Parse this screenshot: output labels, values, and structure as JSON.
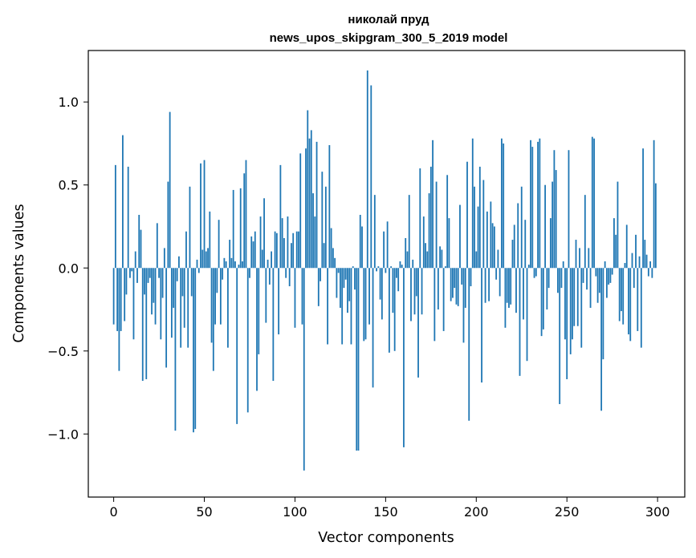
{
  "chart_data": {
    "type": "bar",
    "title_line1": "николай пруд",
    "title_line2": "news_upos_skipgram_300_5_2019 model",
    "xlabel": "Vector components",
    "ylabel": "Components values",
    "xlim": [
      -14,
      315
    ],
    "ylim": [
      -1.38,
      1.31
    ],
    "xticks": [
      {
        "value": 0,
        "label": "0"
      },
      {
        "value": 50,
        "label": "50"
      },
      {
        "value": 100,
        "label": "100"
      },
      {
        "value": 150,
        "label": "150"
      },
      {
        "value": 200,
        "label": "200"
      },
      {
        "value": 250,
        "label": "250"
      },
      {
        "value": 300,
        "label": "300"
      }
    ],
    "yticks": [
      {
        "value": -1.0,
        "label": "−1.0"
      },
      {
        "value": -0.5,
        "label": "−0.5"
      },
      {
        "value": 0.0,
        "label": "0.0"
      },
      {
        "value": 0.5,
        "label": "0.5"
      },
      {
        "value": 1.0,
        "label": "1.0"
      }
    ],
    "bar_color": "#1f77b4",
    "values": [
      -0.34,
      0.62,
      -0.38,
      -0.62,
      -0.38,
      0.8,
      -0.32,
      -0.16,
      0.61,
      -0.06,
      -0.02,
      -0.43,
      0.1,
      -0.09,
      0.32,
      0.23,
      -0.68,
      -0.16,
      -0.67,
      -0.09,
      -0.06,
      -0.28,
      -0.21,
      -0.34,
      0.27,
      -0.06,
      -0.43,
      -0.18,
      0.12,
      -0.6,
      0.52,
      0.94,
      -0.42,
      -0.24,
      -0.98,
      -0.08,
      0.07,
      -0.48,
      -0.17,
      -0.36,
      0.22,
      -0.48,
      0.49,
      -0.17,
      -0.99,
      -0.97,
      0.05,
      -0.03,
      0.63,
      0.11,
      0.65,
      0.1,
      0.12,
      0.34,
      -0.45,
      -0.62,
      -0.34,
      -0.15,
      0.29,
      -0.34,
      -0.07,
      0.06,
      0.04,
      -0.48,
      0.17,
      0.06,
      0.47,
      0.04,
      -0.94,
      0.02,
      0.48,
      0.04,
      0.57,
      0.65,
      -0.87,
      -0.06,
      0.19,
      0.16,
      0.22,
      -0.74,
      -0.52,
      0.31,
      0.11,
      0.42,
      -0.33,
      0.05,
      -0.1,
      0.1,
      -0.68,
      0.22,
      0.21,
      -0.4,
      0.62,
      0.3,
      0.18,
      -0.06,
      0.31,
      -0.11,
      0.15,
      0.21,
      -0.36,
      0.22,
      0.22,
      0.69,
      -0.34,
      -1.22,
      0.72,
      0.95,
      0.78,
      0.83,
      0.45,
      0.31,
      0.76,
      -0.23,
      -0.08,
      0.58,
      0.15,
      0.49,
      -0.46,
      0.74,
      0.24,
      0.12,
      0.06,
      -0.18,
      -0.03,
      -0.24,
      -0.46,
      -0.12,
      -0.07,
      -0.27,
      -0.2,
      -0.46,
      0.01,
      -0.13,
      -1.1,
      -1.1,
      0.32,
      0.25,
      -0.44,
      -0.43,
      1.19,
      -0.34,
      1.1,
      -0.72,
      0.44,
      -0.02,
      0.01,
      -0.19,
      -0.31,
      0.22,
      -0.03,
      0.28,
      -0.51,
      0.01,
      -0.27,
      -0.5,
      -0.06,
      -0.14,
      0.04,
      0.02,
      -1.08,
      0.18,
      0.1,
      0.44,
      -0.32,
      0.05,
      -0.28,
      -0.17,
      -0.66,
      0.6,
      -0.28,
      0.31,
      0.15,
      0.1,
      0.45,
      0.61,
      0.77,
      -0.44,
      0.52,
      -0.25,
      0.13,
      0.11,
      -0.38,
      0.01,
      0.56,
      0.3,
      -0.2,
      -0.18,
      -0.12,
      -0.22,
      -0.23,
      0.38,
      -0.1,
      -0.45,
      -0.24,
      0.64,
      -0.92,
      -0.11,
      0.78,
      0.49,
      0.1,
      0.37,
      0.61,
      -0.69,
      0.53,
      -0.21,
      0.34,
      -0.2,
      0.4,
      0.27,
      0.25,
      -0.07,
      0.11,
      -0.17,
      0.78,
      0.75,
      -0.36,
      -0.21,
      -0.24,
      -0.22,
      0.17,
      0.26,
      -0.27,
      0.39,
      -0.65,
      0.49,
      -0.31,
      0.29,
      -0.56,
      0.02,
      0.77,
      0.73,
      -0.06,
      -0.05,
      0.76,
      0.78,
      -0.41,
      -0.37,
      0.5,
      -0.25,
      -0.12,
      0.3,
      0.52,
      0.71,
      0.59,
      -0.15,
      -0.82,
      -0.12,
      0.04,
      -0.43,
      -0.67,
      0.71,
      -0.52,
      -0.43,
      -0.35,
      0.17,
      -0.35,
      0.12,
      -0.48,
      -0.09,
      0.44,
      -0.13,
      0.12,
      -0.24,
      0.79,
      0.78,
      -0.05,
      -0.21,
      -0.15,
      -0.86,
      -0.55,
      0.04,
      -0.18,
      -0.1,
      -0.09,
      -0.04,
      0.3,
      0.2,
      0.52,
      -0.32,
      -0.26,
      -0.34,
      0.03,
      0.26,
      -0.4,
      -0.44,
      0.09,
      -0.12,
      0.2,
      -0.38,
      0.07,
      -0.48,
      0.72,
      0.17,
      0.08,
      -0.05,
      0.04,
      -0.06,
      0.77,
      0.51
    ]
  }
}
